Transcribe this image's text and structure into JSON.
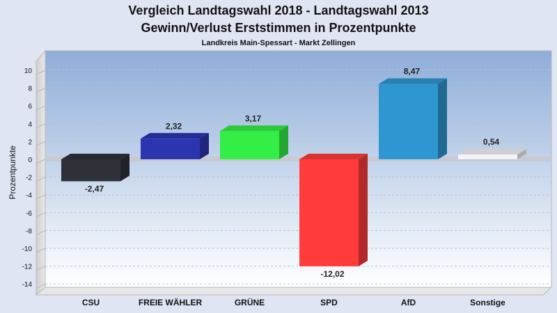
{
  "chart_data": {
    "type": "bar",
    "title": "Vergleich Landtagswahl 2018 - Landtagswahl 2013",
    "title2": "Gewinn/Verlust Erststimmen in Prozentpunkte",
    "subtitle": "Landkreis Main-Spessart - Markt Zellingen",
    "xlabel": "",
    "ylabel": "Prozentpunkte",
    "categories": [
      "CSU",
      "FREIE WÄHLER",
      "GRÜNE",
      "SPD",
      "AfD",
      "Sonstige"
    ],
    "values": [
      -2.47,
      2.32,
      3.17,
      -12.02,
      8.47,
      0.54
    ],
    "value_labels": [
      "-2,47",
      "2,32",
      "3,17",
      "-12,02",
      "8,47",
      "0,54"
    ],
    "colors": [
      "#2e3138",
      "#2b35b0",
      "#33ee44",
      "#ff3b3b",
      "#2e96d0",
      "#f4f4f8"
    ],
    "ylim": [
      -15,
      11
    ],
    "yticks": [
      10,
      8,
      6,
      4,
      2,
      0,
      -2,
      -4,
      -6,
      -8,
      -10,
      -12,
      -14
    ],
    "grid": true,
    "legend": "none"
  }
}
